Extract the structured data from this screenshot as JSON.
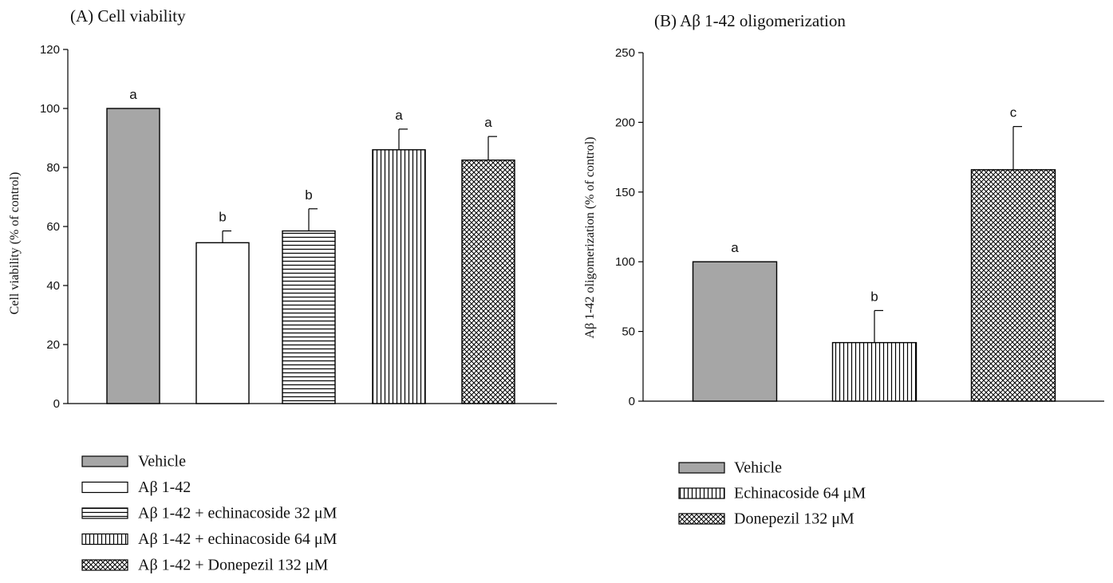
{
  "chart_data": [
    {
      "type": "bar",
      "title": "(A) Cell viability",
      "ylabel": "Cell viability (% of control)",
      "xlabel": "",
      "ylim": [
        0,
        120
      ],
      "yticks": [
        0,
        20,
        40,
        60,
        80,
        100,
        120
      ],
      "grid": false,
      "legend_position": "bottom-left",
      "categories": [
        "Vehicle",
        "Aβ 1-42",
        "Aβ 1-42 + echinacoside 32 μM",
        "Aβ 1-42 + echinacoside 64 μM",
        "Aβ 1-42 + Donepezil 132 μM"
      ],
      "values": [
        100,
        54.5,
        58.5,
        86,
        82.5
      ],
      "errors": [
        0,
        4,
        7.5,
        7,
        8
      ],
      "significance": [
        "a",
        "b",
        "b",
        "a",
        "a"
      ],
      "patterns": [
        "solid-gray",
        "white",
        "horizontal",
        "vertical",
        "crosshatch"
      ],
      "colors": {
        "solid_fill": "#a6a6a6",
        "stroke": "#000000"
      }
    },
    {
      "type": "bar",
      "title": "(B) Aβ 1-42 oligomerization",
      "ylabel": "Aβ 1-42 oligomerization (% of control)",
      "xlabel": "",
      "ylim": [
        0,
        250
      ],
      "yticks": [
        0,
        50,
        100,
        150,
        200,
        250
      ],
      "grid": false,
      "legend_position": "bottom-left",
      "categories": [
        "Vehicle",
        "Echinacoside 64 μM",
        "Donepezil 132 μM"
      ],
      "values": [
        100,
        42,
        166
      ],
      "errors": [
        0,
        23,
        31
      ],
      "significance": [
        "a",
        "b",
        "c"
      ],
      "patterns": [
        "solid-gray",
        "vertical",
        "crosshatch"
      ],
      "colors": {
        "solid_fill": "#a6a6a6",
        "stroke": "#000000"
      }
    }
  ]
}
